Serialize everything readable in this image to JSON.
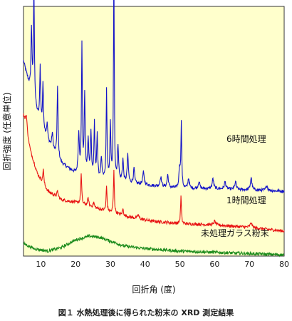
{
  "caption": "図１ 水熱処理後に得られた粉末の XRD 測定結果",
  "chart_data": {
    "type": "line",
    "xlabel": "回折角 (度)",
    "ylabel": "回折強度 (任意単位)",
    "xlim": [
      5,
      80
    ],
    "xticks": [
      10,
      20,
      30,
      40,
      50,
      60,
      70,
      80
    ],
    "plot_background": "#FFFFCC",
    "grid": false,
    "series": [
      {
        "name": "6時間処理",
        "color": "#1414C8",
        "baseline": [
          [
            5,
            0.78
          ],
          [
            8,
            0.6
          ],
          [
            12,
            0.46
          ],
          [
            16,
            0.37
          ],
          [
            20,
            0.33
          ],
          [
            25,
            0.31
          ],
          [
            30,
            0.3
          ],
          [
            40,
            0.285
          ],
          [
            50,
            0.27
          ],
          [
            60,
            0.27
          ],
          [
            70,
            0.265
          ],
          [
            80,
            0.26
          ]
        ],
        "peaks": [
          [
            7.3,
            0.26,
            0.18
          ],
          [
            8.0,
            0.48,
            0.16
          ],
          [
            9.8,
            0.22,
            0.15
          ],
          [
            10.6,
            0.18,
            0.15
          ],
          [
            11.8,
            0.06,
            0.2
          ],
          [
            13.3,
            0.06,
            0.2
          ],
          [
            14.8,
            0.28,
            0.16
          ],
          [
            20.9,
            0.16,
            0.2
          ],
          [
            21.8,
            0.52,
            0.15
          ],
          [
            22.6,
            0.32,
            0.16
          ],
          [
            23.6,
            0.14,
            0.2
          ],
          [
            24.4,
            0.18,
            0.18
          ],
          [
            25.4,
            0.22,
            0.16
          ],
          [
            26.2,
            0.18,
            0.16
          ],
          [
            27.4,
            0.08,
            0.2
          ],
          [
            28.9,
            0.36,
            0.15
          ],
          [
            30.0,
            0.22,
            0.16
          ],
          [
            31.0,
            0.87,
            0.13
          ],
          [
            32.2,
            0.14,
            0.2
          ],
          [
            33.6,
            0.09,
            0.2
          ],
          [
            35.0,
            0.11,
            0.2
          ],
          [
            36.8,
            0.06,
            0.2
          ],
          [
            39.5,
            0.05,
            0.25
          ],
          [
            44.5,
            0.04,
            0.25
          ],
          [
            46.5,
            0.05,
            0.22
          ],
          [
            49.9,
            0.08,
            0.2
          ],
          [
            50.4,
            0.26,
            0.15
          ],
          [
            52.5,
            0.04,
            0.25
          ],
          [
            55.5,
            0.03,
            0.25
          ],
          [
            59.5,
            0.04,
            0.25
          ],
          [
            63.0,
            0.03,
            0.25
          ],
          [
            66.0,
            0.03,
            0.25
          ],
          [
            70.5,
            0.05,
            0.25
          ],
          [
            75.0,
            0.02,
            0.3
          ]
        ]
      },
      {
        "name": "1時間処理",
        "color": "#E81414",
        "baseline": [
          [
            5,
            0.56
          ],
          [
            7,
            0.42
          ],
          [
            9,
            0.33
          ],
          [
            12,
            0.26
          ],
          [
            16,
            0.225
          ],
          [
            20,
            0.215
          ],
          [
            24,
            0.2
          ],
          [
            30,
            0.175
          ],
          [
            36,
            0.155
          ],
          [
            42,
            0.14
          ],
          [
            50,
            0.13
          ],
          [
            60,
            0.125
          ],
          [
            70,
            0.115
          ],
          [
            80,
            0.1
          ]
        ],
        "peaks": [
          [
            5.8,
            0.06,
            0.3
          ],
          [
            10.7,
            0.06,
            0.16
          ],
          [
            14.8,
            0.025,
            0.2
          ],
          [
            21.6,
            0.12,
            0.16
          ],
          [
            23.6,
            0.03,
            0.2
          ],
          [
            25.2,
            0.02,
            0.2
          ],
          [
            28.9,
            0.1,
            0.16
          ],
          [
            31.0,
            0.17,
            0.15
          ],
          [
            33.6,
            0.025,
            0.2
          ],
          [
            38.0,
            0.015,
            0.25
          ],
          [
            50.3,
            0.11,
            0.15
          ],
          [
            60.0,
            0.015,
            0.3
          ],
          [
            70.5,
            0.02,
            0.3
          ]
        ]
      },
      {
        "name": "未処理ガラス粉末",
        "color": "#1E8C1E",
        "baseline": [
          [
            5,
            0.05
          ],
          [
            8,
            0.03
          ],
          [
            12,
            0.02
          ],
          [
            16,
            0.035
          ],
          [
            20,
            0.065
          ],
          [
            24,
            0.08
          ],
          [
            27,
            0.075
          ],
          [
            30,
            0.06
          ],
          [
            34,
            0.04
          ],
          [
            40,
            0.03
          ],
          [
            50,
            0.02
          ],
          [
            60,
            0.015
          ],
          [
            70,
            0.01
          ],
          [
            80,
            0.005
          ]
        ],
        "peaks": []
      }
    ]
  }
}
